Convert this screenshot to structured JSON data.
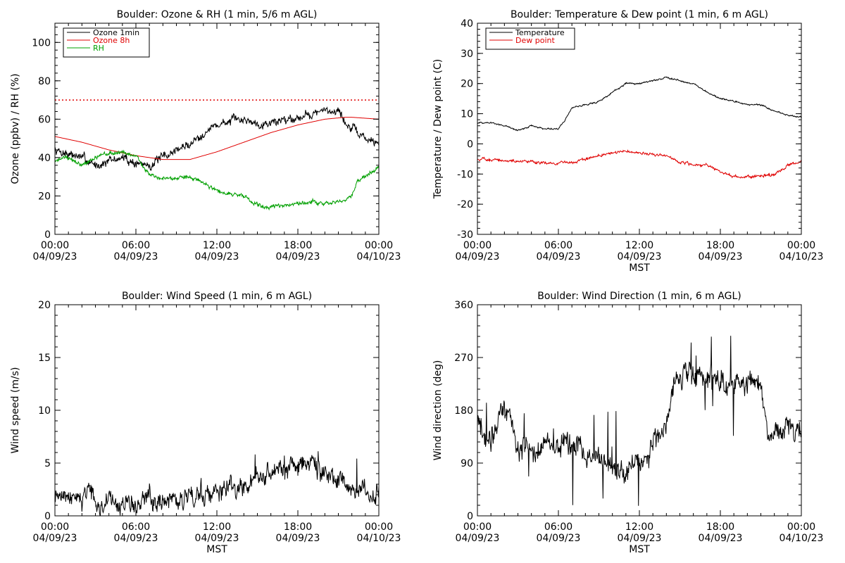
{
  "figure": {
    "colors": {
      "ozone_1min": "#000000",
      "ozone_8h": "#e00000",
      "rh": "#00a000",
      "temperature": "#000000",
      "dewpoint": "#e00000",
      "threshold": "#e00000"
    }
  },
  "chart_data": [
    {
      "type": "line",
      "title": "Boulder: Ozone & RH (1 min, 5/6 m AGL)",
      "ylabel": "Ozone (ppbv) / RH (%)",
      "xlabel": "",
      "xlim": [
        0,
        24
      ],
      "ylim": [
        0,
        110
      ],
      "yticks": [
        0,
        20,
        40,
        60,
        80,
        100
      ],
      "xticks": [
        0,
        6,
        12,
        18,
        24
      ],
      "xtick_labels": [
        [
          "00:00",
          "04/09/23"
        ],
        [
          "06:00",
          "04/09/23"
        ],
        [
          "12:00",
          "04/09/23"
        ],
        [
          "18:00",
          "04/09/23"
        ],
        [
          "00:00",
          "04/10/23"
        ]
      ],
      "reference_line": {
        "y": 70,
        "style": "dotted",
        "color_key": "threshold"
      },
      "legend": {
        "position": "top-left",
        "entries": [
          "Ozone 1min",
          "Ozone 8h",
          "RH"
        ]
      },
      "series": [
        {
          "name": "Ozone 1min",
          "color_key": "ozone_1min",
          "noise": 2.5,
          "x": [
            0,
            1,
            2,
            3,
            4,
            5,
            6,
            7,
            8,
            9,
            10,
            11,
            12,
            13,
            14,
            15,
            16,
            17,
            18,
            19,
            20,
            21,
            21.5,
            22,
            23,
            24
          ],
          "y": [
            44,
            42,
            40,
            36,
            38,
            40,
            37,
            36,
            40,
            44,
            47,
            53,
            57,
            59,
            60,
            58,
            58,
            60,
            61,
            63,
            64,
            65,
            58,
            55,
            50,
            47
          ]
        },
        {
          "name": "Ozone 8h",
          "color_key": "ozone_8h",
          "noise": 0,
          "x": [
            0,
            2,
            4,
            6,
            8,
            10,
            12,
            14,
            16,
            18,
            20,
            21.5,
            22,
            24
          ],
          "y": [
            51,
            48,
            44,
            41,
            39,
            39,
            43,
            48,
            53,
            57,
            60,
            61,
            61,
            60
          ]
        },
        {
          "name": "RH",
          "color_key": "rh",
          "noise": 1.2,
          "x": [
            0,
            1,
            2,
            3,
            4,
            5,
            6,
            7,
            8,
            9,
            10,
            11,
            12,
            13,
            14,
            15,
            16,
            17,
            18,
            19,
            20,
            21,
            22,
            22.5,
            23,
            24
          ],
          "y": [
            39,
            40,
            36,
            40,
            42,
            43,
            41,
            31,
            29,
            29,
            30,
            27,
            23,
            21,
            20,
            15,
            14,
            15,
            16,
            17,
            16,
            17,
            20,
            28,
            31,
            35
          ]
        }
      ]
    },
    {
      "type": "line",
      "title": "Boulder: Temperature & Dew point (1 min, 6 m AGL)",
      "ylabel": "Temperature / Dew point (C)",
      "xlabel": "MST",
      "xlim": [
        0,
        24
      ],
      "ylim": [
        -30,
        40
      ],
      "yticks": [
        -30,
        -20,
        -10,
        0,
        10,
        20,
        30,
        40
      ],
      "xticks": [
        0,
        6,
        12,
        18,
        24
      ],
      "xtick_labels": [
        [
          "00:00",
          "04/09/23"
        ],
        [
          "06:00",
          "04/09/23"
        ],
        [
          "12:00",
          "04/09/23"
        ],
        [
          "18:00",
          "04/09/23"
        ],
        [
          "00:00",
          "04/10/23"
        ]
      ],
      "legend": {
        "position": "top-left",
        "entries": [
          "Temperature",
          "Dew point"
        ]
      },
      "series": [
        {
          "name": "Temperature",
          "color_key": "temperature",
          "noise": 0.3,
          "x": [
            0,
            1,
            2,
            3,
            4,
            5,
            6,
            6.5,
            7,
            8,
            9,
            10,
            11,
            12,
            13,
            14,
            15,
            16,
            17,
            18,
            19,
            20,
            21,
            22,
            23,
            24
          ],
          "y": [
            7,
            7,
            6,
            4.5,
            6,
            5,
            5,
            8,
            12,
            13,
            14,
            17,
            20,
            20,
            21,
            22,
            21,
            20,
            17,
            15,
            14,
            13,
            13,
            11,
            9.5,
            9
          ]
        },
        {
          "name": "Dew point",
          "color_key": "dewpoint",
          "noise": 0.5,
          "x": [
            0,
            2,
            4,
            6,
            7,
            8,
            9,
            10,
            11,
            12,
            13,
            14,
            15,
            16,
            17,
            18,
            19,
            20,
            21,
            22,
            23,
            24
          ],
          "y": [
            -5,
            -5.5,
            -6,
            -6.5,
            -6,
            -5,
            -4,
            -3,
            -2.5,
            -3,
            -3.5,
            -4,
            -6,
            -7,
            -7,
            -9,
            -11,
            -11,
            -10.5,
            -10,
            -7,
            -6
          ]
        }
      ]
    },
    {
      "type": "line",
      "title": "Boulder: Wind Speed (1 min, 6 m AGL)",
      "ylabel": "Wind speed (m/s)",
      "xlabel": "MST",
      "xlim": [
        0,
        24
      ],
      "ylim": [
        0,
        20
      ],
      "yticks": [
        0,
        5,
        10,
        15,
        20
      ],
      "xticks": [
        0,
        6,
        12,
        18,
        24
      ],
      "xtick_labels": [
        [
          "00:00",
          "04/09/23"
        ],
        [
          "06:00",
          "04/09/23"
        ],
        [
          "12:00",
          "04/09/23"
        ],
        [
          "18:00",
          "04/09/23"
        ],
        [
          "00:00",
          "04/10/23"
        ]
      ],
      "series": [
        {
          "name": "Wind speed",
          "color_key": "ozone_1min",
          "noise": 1.0,
          "x": [
            0,
            1,
            2,
            2.5,
            3,
            4,
            5,
            6,
            7,
            8,
            9,
            10,
            11,
            12,
            13,
            14,
            15,
            16,
            17,
            18,
            19,
            20,
            21,
            21.5,
            22,
            23,
            24
          ],
          "y": [
            2,
            1.8,
            1.5,
            3,
            1.2,
            1,
            1,
            1.2,
            2,
            1.5,
            1.5,
            2,
            2,
            2,
            2.5,
            2.5,
            3.5,
            4,
            4.5,
            5,
            4.5,
            4,
            3.5,
            2.5,
            2.5,
            2.5,
            2
          ]
        }
      ]
    },
    {
      "type": "line",
      "title": "Boulder: Wind Direction (1 min, 6 m AGL)",
      "ylabel": "Wind direction (deg)",
      "xlabel": "MST",
      "xlim": [
        0,
        24
      ],
      "ylim": [
        0,
        360
      ],
      "yticks": [
        0,
        90,
        180,
        270,
        360
      ],
      "xticks": [
        0,
        6,
        12,
        18,
        24
      ],
      "xtick_labels": [
        [
          "00:00",
          "04/09/23"
        ],
        [
          "06:00",
          "04/09/23"
        ],
        [
          "12:00",
          "04/09/23"
        ],
        [
          "18:00",
          "04/09/23"
        ],
        [
          "00:00",
          "04/10/23"
        ]
      ],
      "series": [
        {
          "name": "Wind direction",
          "color_key": "ozone_1min",
          "noise": 22,
          "x": [
            0,
            1,
            2,
            3,
            4,
            5,
            6,
            7,
            8,
            9,
            10,
            11,
            12,
            13,
            14,
            14.5,
            15,
            16,
            17,
            18,
            19,
            20,
            21,
            21.5,
            22,
            23,
            24
          ],
          "y": [
            160,
            120,
            190,
            120,
            110,
            120,
            120,
            120,
            110,
            100,
            80,
            80,
            100,
            120,
            150,
            230,
            240,
            235,
            235,
            235,
            230,
            230,
            220,
            130,
            130,
            150,
            140
          ]
        }
      ]
    }
  ]
}
